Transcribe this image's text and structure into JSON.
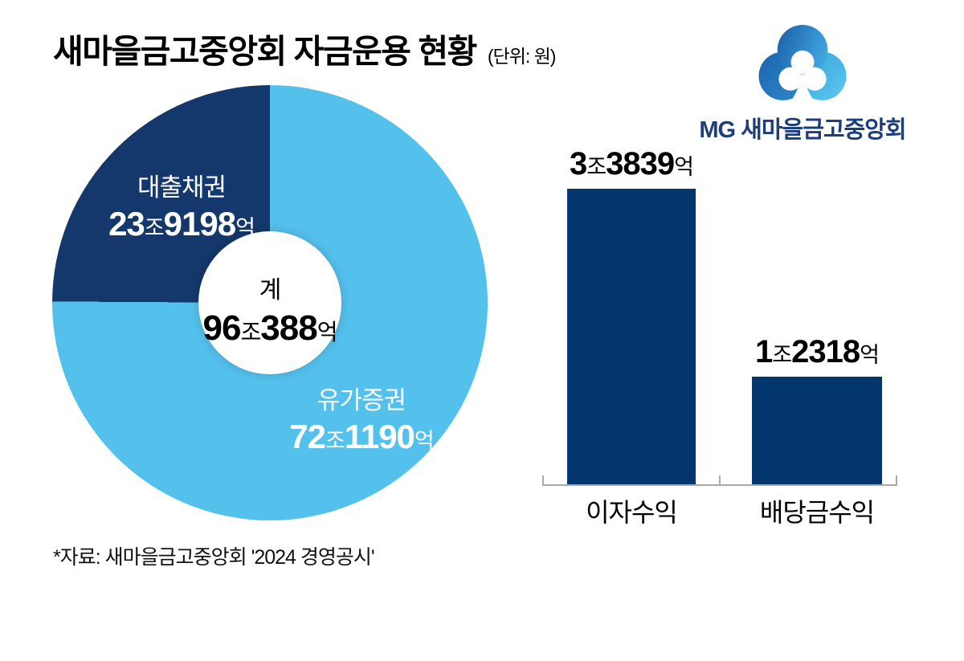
{
  "header": {
    "title": "새마을금고중앙회 자금운용 현황",
    "unit": "(단위: 원)"
  },
  "logo": {
    "text": "MG 새마을금고중앙회",
    "icon": "mg-clover-icon",
    "brand_blue_dark": "#1b5da9",
    "brand_blue_light": "#5ec9f2",
    "text_color": "#1c3e7d"
  },
  "donut": {
    "center": {
      "label": "계",
      "n1": "96",
      "u1": "조",
      "n2": "388",
      "u2": "억"
    },
    "segments": [
      {
        "label": "대출채권",
        "n1": "23",
        "u1": "조",
        "n2": "9198",
        "u2": "억",
        "color": "#14386b"
      },
      {
        "label": "유가증권",
        "n1": "72",
        "u1": "조",
        "n2": "1190",
        "u2": "억",
        "color": "#54c0ec"
      }
    ]
  },
  "bar_chart": {
    "bars": [
      {
        "category": "이자수익",
        "n1": "3",
        "u1": "조",
        "n2": "3839",
        "u2": "억"
      },
      {
        "category": "배당금수익",
        "n1": "1",
        "u1": "조",
        "n2": "2318",
        "u2": "억"
      }
    ],
    "bar_color": "#04366e",
    "axis_color": "#a9a9a9"
  },
  "footer": {
    "source": "*자료: 새마을금고중앙회 '2024 경영공시'"
  },
  "chart_data": [
    {
      "type": "pie",
      "subtype": "donut",
      "title": "새마을금고중앙회 자금운용 현황",
      "unit": "억원",
      "labels": [
        "유가증권",
        "대출채권"
      ],
      "values": [
        721190,
        239198
      ],
      "values_display": [
        "72조1190억",
        "23조9198억"
      ],
      "total": 960388,
      "total_display": "96조388억",
      "center_label": "계",
      "colors": [
        "#54c0ec",
        "#14386b"
      ],
      "start_angle_deg": 0,
      "direction": "clockwise",
      "legend": "labels drawn inside slices"
    },
    {
      "type": "bar",
      "categories": [
        "이자수익",
        "배당금수익"
      ],
      "unit": "억원",
      "values": [
        33839,
        12318
      ],
      "values_display": [
        "3조3839억",
        "1조2318억"
      ],
      "bar_color": "#04366e",
      "ylim": [
        0,
        33839
      ],
      "grid": false,
      "value_labels": "above-bars",
      "axis": "baseline with end and middle ticks"
    }
  ]
}
